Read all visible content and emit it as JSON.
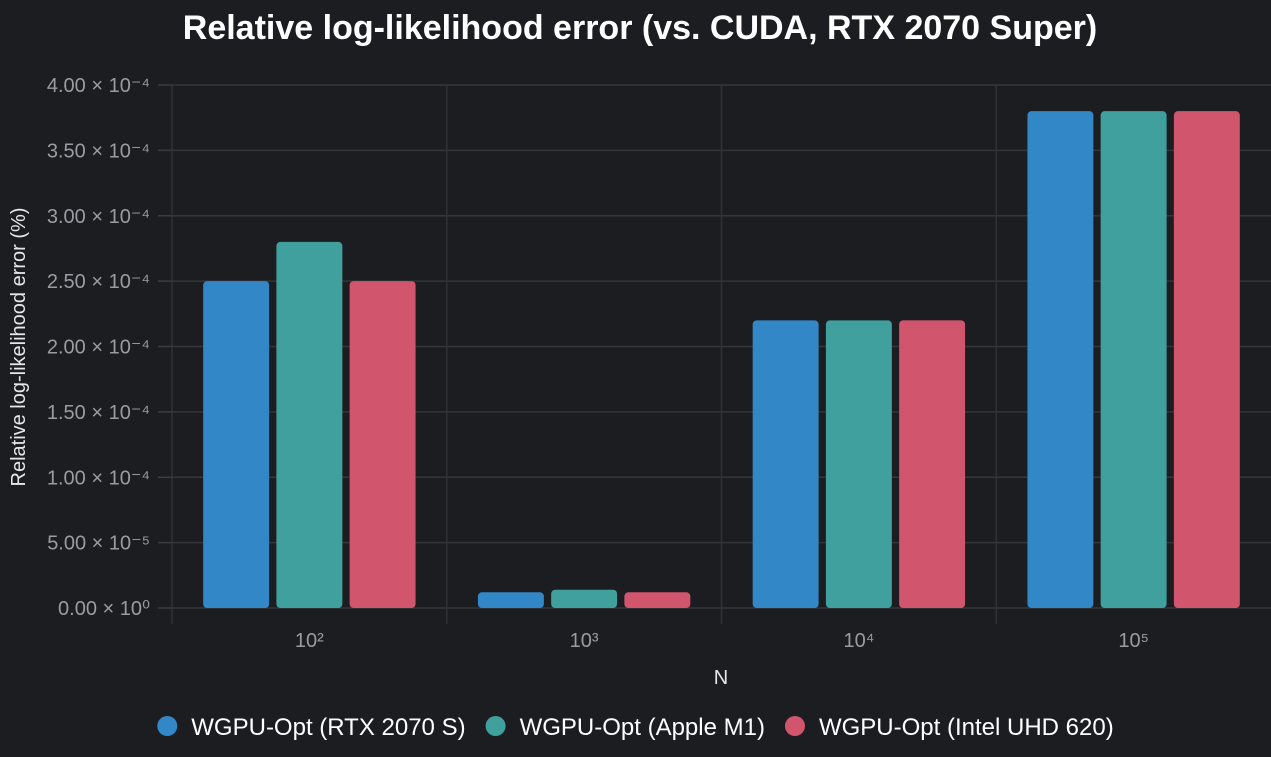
{
  "chart_data": {
    "type": "bar",
    "title": "Relative log-likelihood error (vs. CUDA, RTX 2070 Super)",
    "xlabel": "N",
    "ylabel": "Relative log-likelihood error (%)",
    "categories": [
      "10²",
      "10³",
      "10⁴",
      "10⁵"
    ],
    "ylim": [
      0,
      0.0004
    ],
    "yticks": [
      0,
      5e-05,
      0.0001,
      0.00015,
      0.0002,
      0.00025,
      0.0003,
      0.00035,
      0.0004
    ],
    "ytick_labels": [
      "0.00 × 10⁰",
      "5.00 × 10⁻⁵",
      "1.00 × 10⁻⁴",
      "1.50 × 10⁻⁴",
      "2.00 × 10⁻⁴",
      "2.50 × 10⁻⁴",
      "3.00 × 10⁻⁴",
      "3.50 × 10⁻⁴",
      "4.00 × 10⁻⁴"
    ],
    "grid": true,
    "legend_position": "bottom",
    "series": [
      {
        "name": "WGPU-Opt (RTX 2070 S)",
        "color": "#3288c7",
        "values": [
          0.00025,
          1.2e-05,
          0.00022,
          0.00038
        ]
      },
      {
        "name": "WGPU-Opt (Apple M1)",
        "color": "#40a09d",
        "values": [
          0.00028,
          1.4e-05,
          0.00022,
          0.00038
        ]
      },
      {
        "name": "WGPU-Opt (Intel UHD 620)",
        "color": "#d2556e",
        "values": [
          0.00025,
          1.2e-05,
          0.00022,
          0.00038
        ]
      }
    ]
  }
}
